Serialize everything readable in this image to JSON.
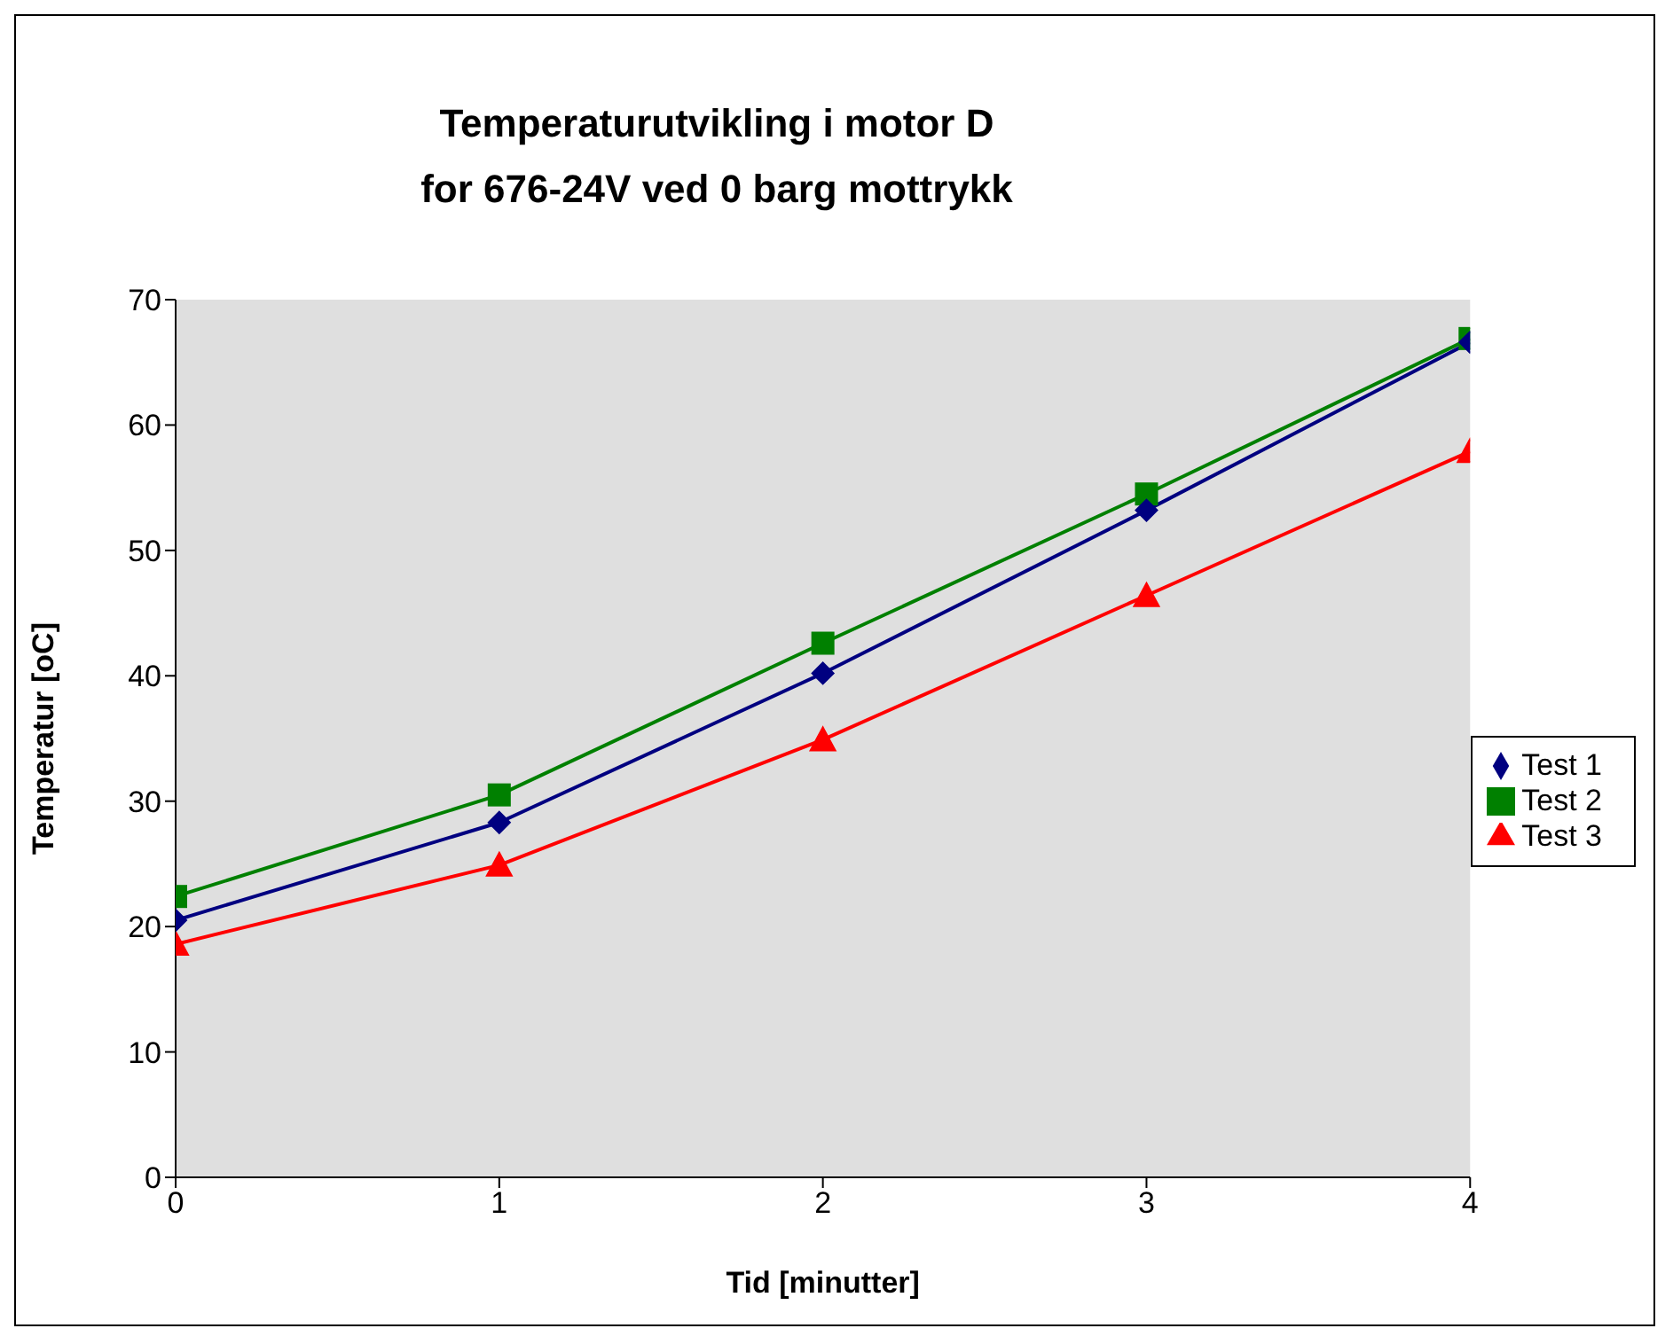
{
  "chart_data": {
    "type": "line",
    "title": "Temperaturutvikling i motor D\nfor 676-24V ved 0 barg mottrykk",
    "xlabel": "Tid [minutter]",
    "ylabel": "Temperatur [oC]",
    "x": [
      0,
      1,
      2,
      3,
      4
    ],
    "xlim": [
      0,
      4
    ],
    "xticks": [
      0,
      1,
      2,
      3,
      4
    ],
    "ylim": [
      0,
      70
    ],
    "yticks": [
      0,
      10,
      20,
      30,
      40,
      50,
      60,
      70
    ],
    "series": [
      {
        "name": "Test 1",
        "color": "#000080",
        "marker": "diamond",
        "values": [
          20.5,
          28.3,
          40.2,
          53.2,
          66.6
        ]
      },
      {
        "name": "Test 2",
        "color": "#008000",
        "marker": "square",
        "values": [
          22.4,
          30.5,
          42.6,
          54.5,
          66.9
        ]
      },
      {
        "name": "Test 3",
        "color": "#ff0000",
        "marker": "triangle",
        "values": [
          18.6,
          24.9,
          34.9,
          46.4,
          57.9
        ]
      }
    ],
    "grid": false,
    "legend": "right",
    "line_style": "solid"
  }
}
